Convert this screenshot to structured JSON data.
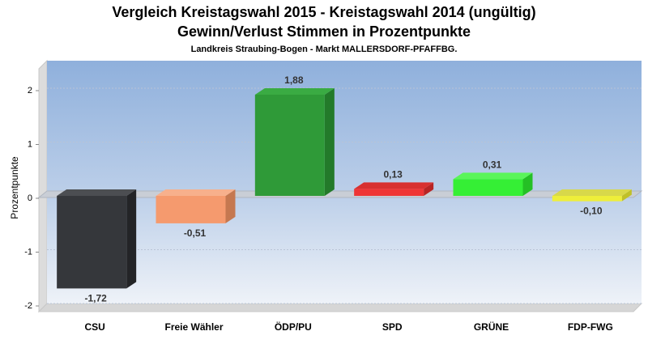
{
  "chart_data": {
    "type": "bar",
    "title_line1": "Vergleich Kreistagswahl 2015 - Kreistagswahl 2014 (ungültig)",
    "title_line2": "Gewinn/Verlust Stimmen in Prozentpunkte",
    "subtitle": "Landkreis Straubing-Bogen - Markt MALLERSDORF-PFAFFBG.",
    "ylabel": "Prozentpunkte",
    "ylim": [
      -2.2,
      2.5
    ],
    "yticks": [
      2,
      1,
      0,
      -1,
      -2
    ],
    "grid": true,
    "categories": [
      "CSU",
      "Freie Wähler",
      "ÖDP/PU",
      "SPD",
      "GRÜNE",
      "FDP-FWG"
    ],
    "values": [
      -1.72,
      -0.51,
      1.88,
      0.13,
      0.31,
      -0.1
    ],
    "value_labels": [
      "-1,72",
      "-0,51",
      "1,88",
      "0,13",
      "0,31",
      "-0,10"
    ],
    "colors": [
      "#35373b",
      "#f59a6e",
      "#2f9a38",
      "#ef3535",
      "#35ef35",
      "#eeee3a"
    ],
    "side_colors": [
      "#232427",
      "#c57850",
      "#237a2a",
      "#b82424",
      "#25c025",
      "#c0c028"
    ],
    "top_colors": [
      "#4c4e52",
      "#f7b08c",
      "#3aab43",
      "#d83030",
      "#5af55a",
      "#d8d84a"
    ]
  }
}
